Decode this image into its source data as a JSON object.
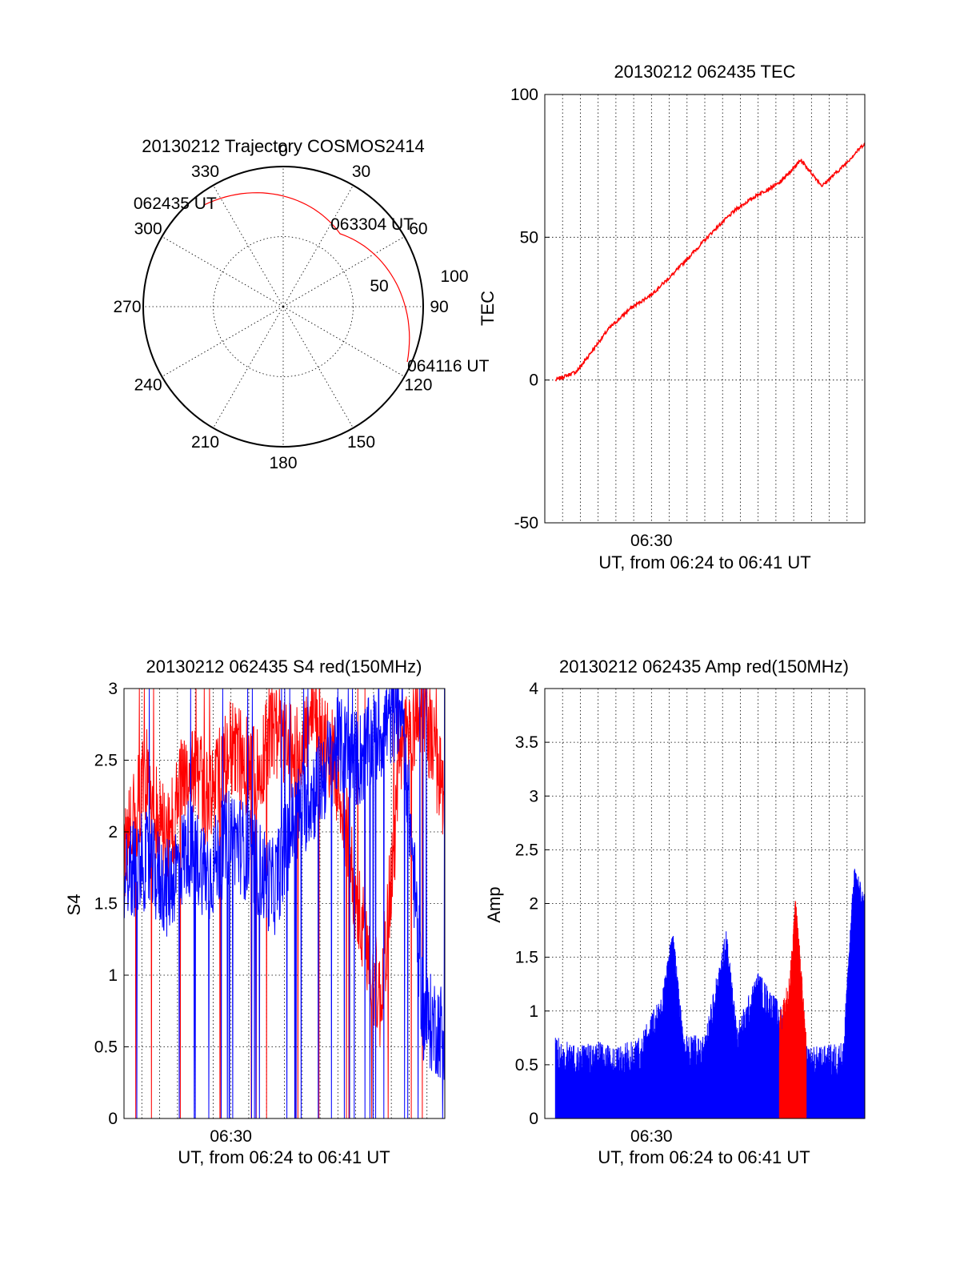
{
  "chart_data": [
    {
      "type": "polar",
      "id": "trajectory",
      "title": "20130212 Trajectory COSMOS2414",
      "azimuth_labels": [
        "0",
        "30",
        "60",
        "90",
        "120",
        "150",
        "180",
        "210",
        "240",
        "270",
        "300",
        "330"
      ],
      "radial_labels": [
        "50",
        "100"
      ],
      "track": {
        "color": "#ff0000",
        "points": [
          {
            "az": 322,
            "r": 92,
            "label": "062435 UT"
          },
          {
            "az": 38,
            "r": 66,
            "label": "063304 UT"
          },
          {
            "az": 114,
            "r": 97,
            "label": "064116 UT"
          }
        ]
      }
    },
    {
      "type": "line",
      "id": "tec",
      "title": "20130212 062435 TEC",
      "xlabel": "UT, from 06:24 to 06:41 UT",
      "ylabel": "TEC",
      "xlim": [
        6.4,
        6.7
      ],
      "ylim": [
        -50,
        100
      ],
      "yticks": [
        "-50",
        "0",
        "50",
        "100"
      ],
      "xticks": [
        {
          "value": 6.5,
          "label": "06:30"
        }
      ],
      "grid": true,
      "series": [
        {
          "color": "#ff0000",
          "x": [
            6.41,
            6.43,
            6.44,
            6.46,
            6.48,
            6.5,
            6.52,
            6.54,
            6.56,
            6.58,
            6.6,
            6.62,
            6.63,
            6.64,
            6.66,
            6.68,
            6.7
          ],
          "y": [
            0,
            3,
            8,
            18,
            25,
            30,
            37,
            45,
            53,
            60,
            65,
            69,
            73,
            77,
            68,
            75,
            83
          ]
        }
      ]
    },
    {
      "type": "line",
      "id": "s4",
      "title": "20130212 062435 S4 red(150MHz)",
      "xlabel": "UT, from 06:24 to 06:41 UT",
      "ylabel": "S4",
      "xlim": [
        6.4,
        6.7
      ],
      "ylim": [
        0,
        3
      ],
      "yticks": [
        "0",
        "0.5",
        "1",
        "1.5",
        "2",
        "2.5",
        "3"
      ],
      "xticks": [
        {
          "value": 6.5,
          "label": "06:30"
        }
      ],
      "grid": true,
      "series": [
        {
          "color": "#ff0000",
          "x": [
            6.4,
            6.42,
            6.44,
            6.46,
            6.48,
            6.5,
            6.52,
            6.54,
            6.56,
            6.58,
            6.6,
            6.62,
            6.64,
            6.66,
            6.68,
            6.7
          ],
          "y": [
            1.8,
            2.4,
            1.9,
            2.5,
            2.2,
            2.6,
            2.4,
            2.7,
            2.5,
            2.8,
            2.4,
            1.4,
            0.8,
            2.6,
            2.9,
            2.2
          ]
        },
        {
          "color": "#0000ff",
          "x": [
            6.4,
            6.42,
            6.44,
            6.46,
            6.48,
            6.5,
            6.52,
            6.54,
            6.56,
            6.58,
            6.6,
            6.62,
            6.64,
            6.66,
            6.68,
            6.7
          ],
          "y": [
            1.7,
            1.8,
            1.6,
            1.9,
            1.7,
            2.0,
            1.8,
            1.6,
            2.1,
            2.3,
            2.6,
            2.5,
            2.7,
            2.9,
            0.7,
            0.6
          ]
        }
      ]
    },
    {
      "type": "line",
      "id": "amp",
      "title": "20130212 062435 Amp red(150MHz)",
      "xlabel": "UT, from 06:24 to 06:41 UT",
      "ylabel": "Amp",
      "xlim": [
        6.4,
        6.7
      ],
      "ylim": [
        0,
        4
      ],
      "yticks": [
        "0",
        "0.5",
        "1",
        "1.5",
        "2",
        "2.5",
        "3",
        "3.5",
        "4"
      ],
      "xticks": [
        {
          "value": 6.5,
          "label": "06:30"
        }
      ],
      "grid": true,
      "series": [
        {
          "color": "#0000ff",
          "x": [
            6.41,
            6.43,
            6.45,
            6.47,
            6.49,
            6.51,
            6.52,
            6.53,
            6.55,
            6.57,
            6.58,
            6.6,
            6.62,
            6.64,
            6.66,
            6.68,
            6.69,
            6.7
          ],
          "y": [
            0.6,
            0.5,
            0.55,
            0.5,
            0.6,
            1.0,
            1.6,
            0.6,
            0.6,
            1.6,
            0.7,
            1.2,
            0.9,
            0.5,
            0.5,
            0.55,
            2.2,
            1.9
          ]
        },
        {
          "color": "#ff0000",
          "x": [
            6.62,
            6.63,
            6.635,
            6.64,
            6.645
          ],
          "y": [
            0.8,
            1.2,
            1.9,
            1.3,
            0.6
          ]
        }
      ]
    }
  ]
}
